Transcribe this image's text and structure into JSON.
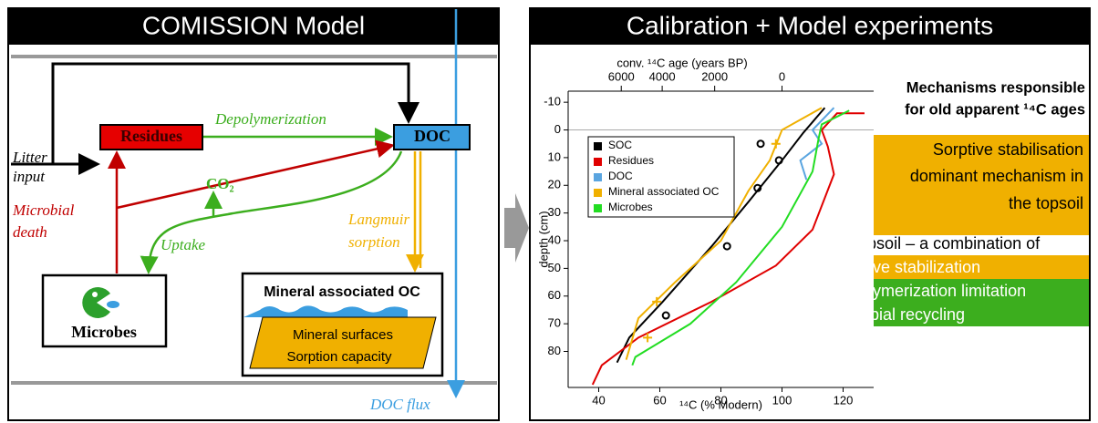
{
  "diagram": {
    "title": "COMISSION Model",
    "residues": "Residues",
    "doc": "DOC",
    "litter": [
      "Litter",
      "input"
    ],
    "depolymerization": "Depolymerization",
    "death": [
      "Microbial",
      "death"
    ],
    "co2": "CO₂",
    "uptake": "Uptake",
    "sorption": [
      "Langmuir",
      "sorption"
    ],
    "flux": "DOC flux",
    "microbes": "Microbes",
    "mineral": "Mineral associated OC",
    "surface": [
      "Mineral surfaces",
      "Sorption capacity"
    ]
  },
  "panel": {
    "title": "Calibration + Model experiments",
    "heading": [
      "Mechanisms responsible",
      "for old apparent ¹⁴C ages"
    ],
    "topsoil": [
      "Sorptive stabilisation",
      "dominant mechanism in",
      "the topsoil"
    ],
    "subsoil": "In the subsoil – a combination of",
    "bullets": [
      {
        "text": "Sorptive stabilization",
        "color": "#f0b000"
      },
      {
        "text": "Depolymerization limitation",
        "color": "#3cae1e"
      },
      {
        "text": "Microbial recycling",
        "color": "#3cae1e"
      }
    ]
  },
  "chart_data": {
    "type": "line",
    "xlabel": "¹⁴C (% Modern)",
    "ylabel": "depth (cm)",
    "x2label": "conv. ¹⁴C age (years BP)",
    "xlim": [
      30,
      130
    ],
    "xticks": [
      40,
      60,
      80,
      100,
      120
    ],
    "ylim": [
      -14,
      93
    ],
    "yticks": [
      -10,
      0,
      10,
      20,
      30,
      40,
      50,
      60,
      70,
      80
    ],
    "y_inverted": true,
    "x2ticks": [
      6000,
      4000,
      2000,
      0
    ],
    "legend": "upper left",
    "series": [
      {
        "name": "SOC",
        "color": "#000000",
        "x": [
          114,
          107,
          100,
          89,
          77,
          61,
          50,
          46
        ],
        "y": [
          -8,
          1,
          11,
          26,
          42,
          62,
          75,
          84
        ]
      },
      {
        "name": "Residues",
        "color": "#e00000",
        "x": [
          127,
          118,
          113,
          115,
          117,
          110,
          98,
          77,
          53,
          41,
          38
        ],
        "y": [
          -6,
          -6,
          0,
          6,
          16,
          36,
          49,
          62,
          75,
          85,
          92
        ]
      },
      {
        "name": "DOC",
        "color": "#5aa5e0",
        "x": [
          117,
          110,
          113,
          106,
          108
        ],
        "y": [
          -8,
          0,
          5,
          11,
          18
        ]
      },
      {
        "name": "Mineral associated OC",
        "color": "#f0b000",
        "x": [
          113,
          100,
          96,
          89,
          80,
          65,
          53,
          49
        ],
        "y": [
          -8,
          0,
          11,
          22,
          40,
          55,
          68,
          83
        ]
      },
      {
        "name": "Microbes",
        "color": "#22dd22",
        "x": [
          122,
          113,
          112,
          110,
          100,
          85,
          70,
          52,
          51
        ],
        "y": [
          -7,
          -2,
          3,
          15,
          35,
          55,
          70,
          82,
          85
        ]
      }
    ],
    "points": [
      {
        "color": "#000000",
        "marker": "circle",
        "x": [
          93,
          99,
          92,
          82,
          62
        ],
        "y": [
          5,
          11,
          21,
          42,
          67
        ]
      },
      {
        "color": "#f0b000",
        "marker": "plus",
        "x": [
          98,
          59,
          56
        ],
        "y": [
          5,
          62,
          75
        ]
      }
    ]
  }
}
